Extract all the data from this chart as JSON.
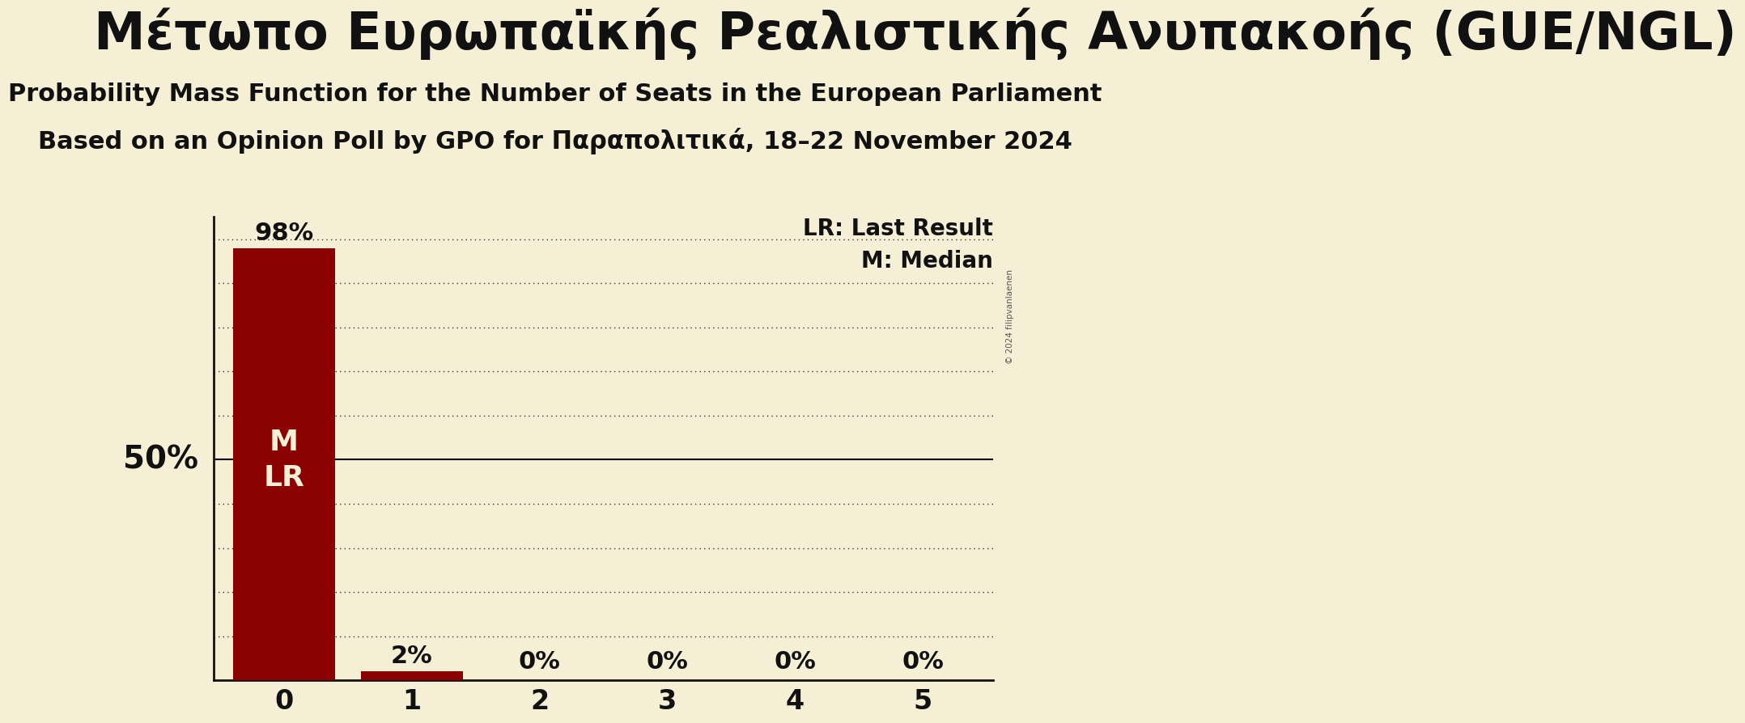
{
  "title_greek": "Μέτωπο Ευρωπαϊκής Ρεαλιστικής Ανυπακοής (GUE/NGL)",
  "subtitle1": "Probability Mass Function for the Number of Seats in the European Parliament",
  "subtitle2": "Based on an Opinion Poll by GPO for Παραπολιτικά, 18–22 November 2024",
  "seats": [
    0,
    1,
    2,
    3,
    4,
    5
  ],
  "probabilities": [
    0.98,
    0.02,
    0.0,
    0.0,
    0.0,
    0.0
  ],
  "bar_color": "#8B0000",
  "background_color": "#f5f0d5",
  "text_color": "#111111",
  "median_seat": 0,
  "last_result_seat": 0,
  "legend_lr": "LR: Last Result",
  "legend_m": "M: Median",
  "ylabel_text": "50%",
  "ylabel_value": 0.5,
  "ylim": [
    0,
    1.05
  ],
  "yticks": [
    0.1,
    0.2,
    0.3,
    0.4,
    0.5,
    0.6,
    0.7,
    0.8,
    0.9,
    1.0
  ],
  "copyright_text": "© 2024 filipvanlaenen",
  "dotted_grid_color": "#333333",
  "solid_line_color": "#000000",
  "title_fontsize": 46,
  "subtitle_fontsize": 22,
  "bar_label_fontsize": 22,
  "tick_fontsize": 24,
  "legend_fontsize": 20,
  "ylabel_fontsize": 28,
  "mlr_fontsize": 26
}
